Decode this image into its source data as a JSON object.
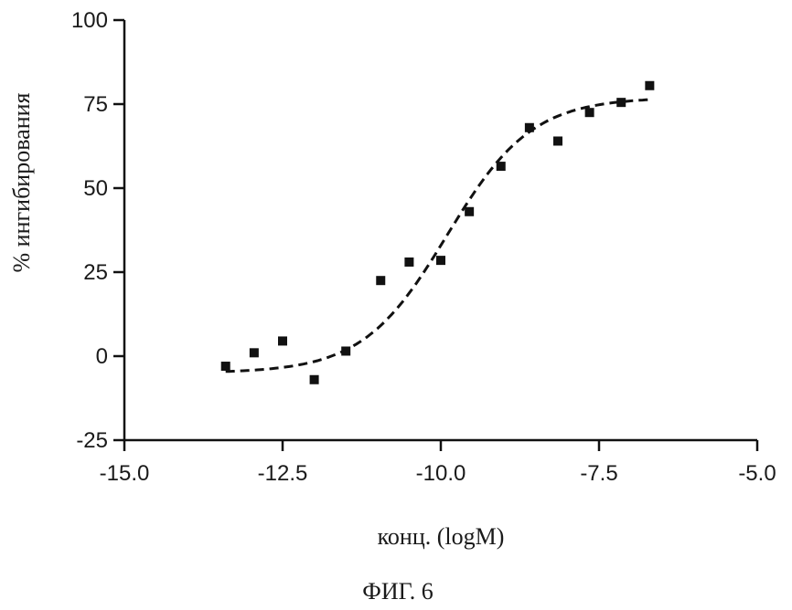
{
  "chart_data": {
    "type": "scatter",
    "xlabel": "конц. (logM)",
    "ylabel": "% ингибирования",
    "xlim": [
      -15.0,
      -5.0
    ],
    "ylim": [
      -25,
      100
    ],
    "x_ticks": [
      -15.0,
      -12.5,
      -10.0,
      -7.5,
      -5.0
    ],
    "x_tick_labels": [
      "-15.0",
      "-12.5",
      "-10.0",
      "-7.5",
      "-5.0"
    ],
    "y_ticks": [
      -25,
      0,
      25,
      50,
      75,
      100
    ],
    "y_tick_labels": [
      "-25",
      "0",
      "25",
      "50",
      "75",
      "100"
    ],
    "grid": false,
    "series": [
      {
        "marker": "square",
        "color": "#111111",
        "points": [
          {
            "x": -13.4,
            "y": -3
          },
          {
            "x": -12.95,
            "y": 1
          },
          {
            "x": -12.5,
            "y": 4.5
          },
          {
            "x": -12.0,
            "y": -7
          },
          {
            "x": -11.5,
            "y": 1.5
          },
          {
            "x": -10.95,
            "y": 22.5
          },
          {
            "x": -10.5,
            "y": 28
          },
          {
            "x": -10.0,
            "y": 28.5
          },
          {
            "x": -9.55,
            "y": 43
          },
          {
            "x": -9.05,
            "y": 56.5
          },
          {
            "x": -8.6,
            "y": 68
          },
          {
            "x": -8.15,
            "y": 64
          },
          {
            "x": -7.65,
            "y": 72.5
          },
          {
            "x": -7.15,
            "y": 75.5
          },
          {
            "x": -6.7,
            "y": 80.5
          }
        ]
      },
      {
        "line_style": "dashed",
        "color": "#111111",
        "fit": {
          "bottom": -5,
          "top": 77,
          "log_ec50": -9.9,
          "hill_slope": 0.65,
          "x_from": -13.4,
          "x_to": -6.7
        }
      }
    ]
  },
  "caption": "ФИГ. 6"
}
